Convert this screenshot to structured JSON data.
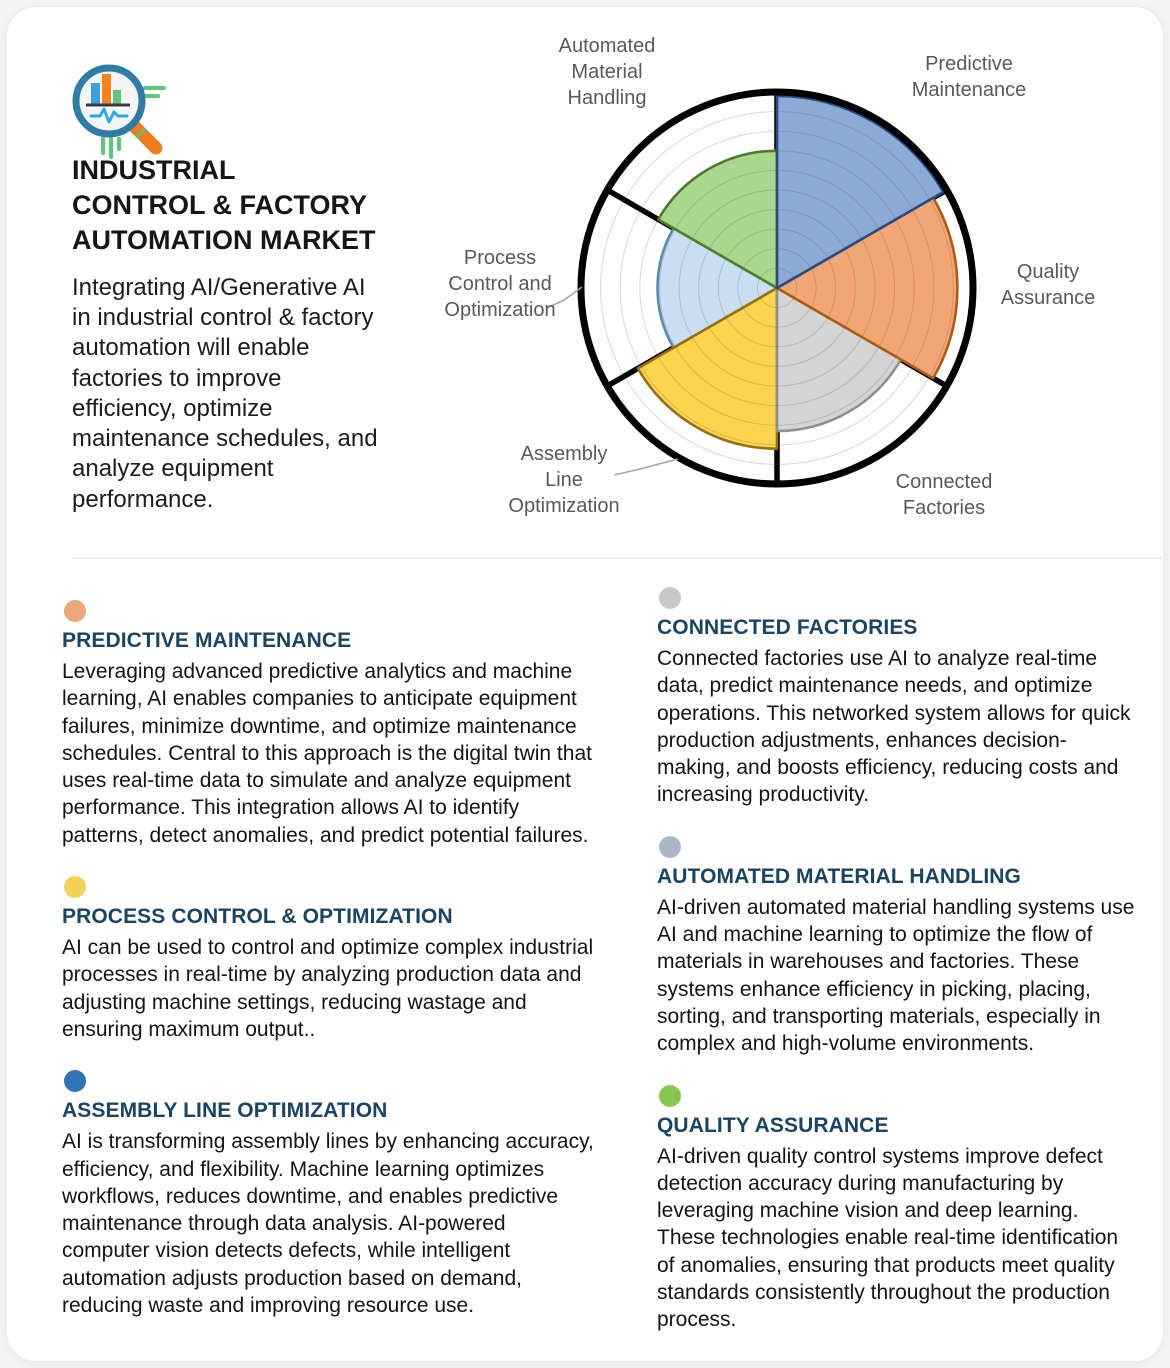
{
  "header": {
    "icon": "analytics-magnifier-icon",
    "title": "INDUSTRIAL\nCONTROL & FACTORY\nAUTOMATION MARKET",
    "description": "Integrating  AI/Generative AI in industrial control & factory automation will enable factories to improve efficiency, optimize maintenance schedules, and analyze equipment performance."
  },
  "chart_data": {
    "type": "rose",
    "description": "Six 60-degree polar sectors, radius = relative emphasis (0-1 of outer ring), clockwise from top",
    "rings": 10,
    "sector_angle_deg": 60,
    "series": [
      {
        "name": "Predictive Maintenance",
        "value": 0.98,
        "fill": "#8da9d6",
        "stroke": "#2b4a7d",
        "label": "Predictive\nMaintenance"
      },
      {
        "name": "Quality Assurance",
        "value": 0.92,
        "fill": "#f2a673",
        "stroke": "#ad5c12",
        "label": "Quality\nAssurance"
      },
      {
        "name": "Connected Factories",
        "value": 0.73,
        "fill": "#d4d4d4",
        "stroke": "#8f8f8f",
        "label": "Connected\nFactories"
      },
      {
        "name": "Assembly Line Optimization",
        "value": 0.82,
        "fill": "#fcd54f",
        "stroke": "#96700f",
        "label": "Assembly\nLine\nOptimization"
      },
      {
        "name": "Process Control and Optimization",
        "value": 0.61,
        "fill": "#c9def1",
        "stroke": "#5e88ad",
        "label": "Process\nControl and\nOptimization"
      },
      {
        "name": "Automated Material Handling",
        "value": 0.7,
        "fill": "#a9d78e",
        "stroke": "#507d2a",
        "label": "Automated\nMaterial\nHandling"
      }
    ],
    "draw_order": [
      4,
      3,
      2,
      1,
      5,
      0
    ],
    "grid_color": "#5a5a5a",
    "outline_color": "#000000",
    "spoke_color": "#000000",
    "leader_color": "#a6a6a6",
    "label_color": "#58595b"
  },
  "sections": {
    "left": [
      {
        "dot_color": "#eda77c",
        "title": "PREDICTIVE MAINTENANCE",
        "body": "Leveraging advanced predictive analytics and machine learning, AI enables companies to anticipate equipment failures, minimize downtime, and optimize maintenance schedules. Central to this approach is the digital twin that uses real-time data to simulate and analyze equipment performance. This integration allows AI to identify patterns, detect anomalies, and predict potential failures."
      },
      {
        "dot_color": "#f3d158",
        "title": "PROCESS CONTROL & OPTIMIZATION",
        "body": "AI can be used to control and optimize complex industrial processes in real-time by analyzing production data and adjusting machine settings, reducing wastage and ensuring maximum output.."
      },
      {
        "dot_color": "#2f74b5",
        "title": "ASSEMBLY LINE OPTIMIZATION",
        "body": "AI is transforming assembly lines by enhancing accuracy, efficiency, and flexibility. Machine learning optimizes workflows, reduces downtime, and enables predictive maintenance through data analysis. AI-powered computer vision detects defects, while intelligent automation adjusts production based on demand, reducing waste and improving resource use."
      }
    ],
    "right": [
      {
        "dot_color": "#c8c8c8",
        "title": "CONNECTED FACTORIES",
        "body": "Connected factories use AI to analyze real-time data, predict maintenance needs, and optimize operations. This networked system allows for quick production adjustments, enhances decision-making, and boosts efficiency, reducing costs and increasing productivity."
      },
      {
        "dot_color": "#a9b7c9",
        "title": "AUTOMATED MATERIAL HANDLING",
        "body": "AI-driven automated material handling systems use AI and machine learning to optimize the flow of materials in warehouses and factories. These systems enhance efficiency in picking, placing, sorting, and transporting materials, especially in complex and high-volume environments."
      },
      {
        "dot_color": "#8cc652",
        "title": "QUALITY ASSURANCE",
        "body": "AI-driven quality control systems improve defect detection accuracy during manufacturing by leveraging machine vision and deep learning. These technologies enable real-time identification of anomalies, ensuring that products meet quality standards consistently throughout the production process."
      }
    ]
  }
}
